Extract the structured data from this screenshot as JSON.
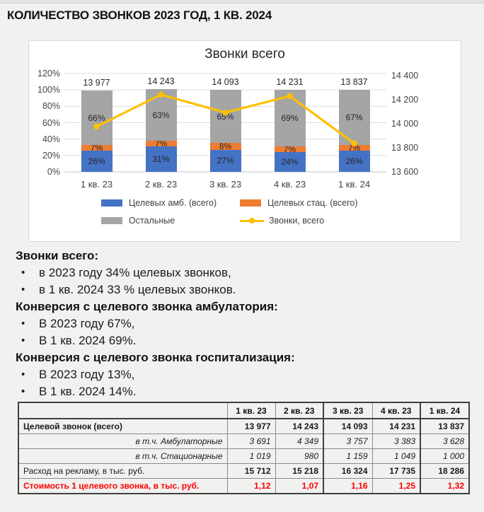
{
  "page": {
    "title": "КОЛИЧЕСТВО ЗВОНКОВ 2023 ГОД, 1 КВ. 2024"
  },
  "chart_data": {
    "type": "combo_stacked_bar_line",
    "title": "Звонки всего",
    "categories": [
      "1 кв. 23",
      "2 кв. 23",
      "3 кв. 23",
      "4 кв. 23",
      "1 кв. 24"
    ],
    "series": [
      {
        "name": "Целевых амб. (всего)",
        "type": "bar",
        "color": "#4472C4",
        "values_pct": [
          26,
          31,
          27,
          24,
          26
        ]
      },
      {
        "name": "Целевых стац. (всего)",
        "type": "bar",
        "color": "#ED7D31",
        "values_pct": [
          7,
          7,
          8,
          7,
          7
        ]
      },
      {
        "name": "Остальные",
        "type": "bar",
        "color": "#A5A5A5",
        "values_pct": [
          66,
          63,
          65,
          69,
          67
        ]
      },
      {
        "name": "Звонки, всего",
        "type": "line",
        "color": "#FFC000",
        "values": [
          13977,
          14243,
          14093,
          14231,
          13837
        ],
        "value_labels": [
          "13 977",
          "14 243",
          "14 093",
          "14 231",
          "13 837"
        ]
      }
    ],
    "left_axis": {
      "ticks": [
        "0%",
        "20%",
        "40%",
        "60%",
        "80%",
        "100%",
        "120%"
      ],
      "min": 0,
      "max": 120
    },
    "right_axis": {
      "ticks": [
        "13 600",
        "13 800",
        "14 000",
        "14 200",
        "14 400"
      ],
      "min": 13600,
      "max": 14400
    },
    "legend_position": "bottom",
    "grid": true
  },
  "notes": [
    {
      "heading": "Звонки всего:",
      "items": [
        "в 2023 году 34% целевых звонков,",
        "в 1 кв. 2024 33 % целевых звонков."
      ]
    },
    {
      "heading": "Конверсия с целевого звонка амбулатория:",
      "items": [
        "В 2023 году 67%,",
        "В 1 кв. 2024 69%."
      ]
    },
    {
      "heading": "Конверсия с целевого звонка госпитализация:",
      "items": [
        "В 2023 году 13%,",
        "В 1 кв. 2024 14%."
      ]
    }
  ],
  "table": {
    "columns": [
      "",
      "1 кв. 23",
      "2 кв. 23",
      "3 кв. 23",
      "4 кв. 23",
      "1 кв. 24"
    ],
    "rows": [
      {
        "label": "Целевой звонок (всего)",
        "values": [
          "13 977",
          "14 243",
          "14 093",
          "14 231",
          "13 837"
        ],
        "style": "bold"
      },
      {
        "label": "в т.ч. Амбулаторные",
        "values": [
          "3 691",
          "4 349",
          "3 757",
          "3 383",
          "3 628"
        ],
        "style": "italic"
      },
      {
        "label": "в т.ч. Стационарные",
        "values": [
          "1 019",
          "980",
          "1 159",
          "1 049",
          "1 000"
        ],
        "style": "italic"
      },
      {
        "label": "Расход на рекламу, в тыс. руб.",
        "values": [
          "15 712",
          "15 218",
          "16 324",
          "17 735",
          "18 286"
        ],
        "style": "spend"
      },
      {
        "label": "Стоимость 1 целевого звонка, в тыс. руб.",
        "values": [
          "1,12",
          "1,07",
          "1,16",
          "1,25",
          "1,32"
        ],
        "style": "red"
      }
    ]
  }
}
